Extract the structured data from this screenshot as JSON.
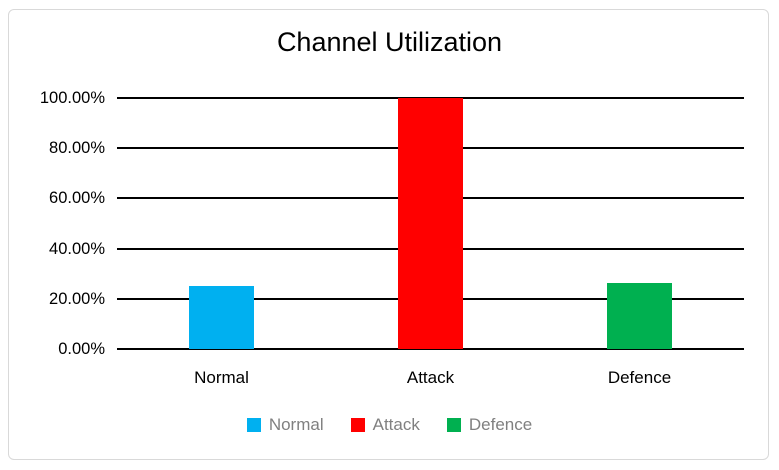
{
  "chart_data": {
    "type": "bar",
    "title": "Channel Utilization",
    "categories": [
      "Normal",
      "Attack",
      "Defence"
    ],
    "values": [
      25.0,
      100.0,
      26.5
    ],
    "value_unit": "percent",
    "xlabel": "",
    "ylabel": "",
    "ylim": [
      0,
      100
    ],
    "ytick_values": [
      0,
      20,
      40,
      60,
      80,
      100
    ],
    "ytick_labels": [
      "0.00%",
      "20.00%",
      "40.00%",
      "60.00%",
      "80.00%",
      "100.00%"
    ],
    "grid": true,
    "bar_colors": [
      "#00B0F0",
      "#FF0000",
      "#00B050"
    ],
    "legend_position": "bottom",
    "legend": [
      {
        "label": "Normal",
        "color": "#00B0F0"
      },
      {
        "label": "Attack",
        "color": "#FF0000"
      },
      {
        "label": "Defence",
        "color": "#00B050"
      }
    ]
  },
  "colors": {
    "background": "#FFFFFF",
    "frame_border": "#D9D9D9",
    "gridline": "#000000",
    "title_text": "#000000",
    "axis_text": "#000000",
    "legend_text": "#808080"
  }
}
